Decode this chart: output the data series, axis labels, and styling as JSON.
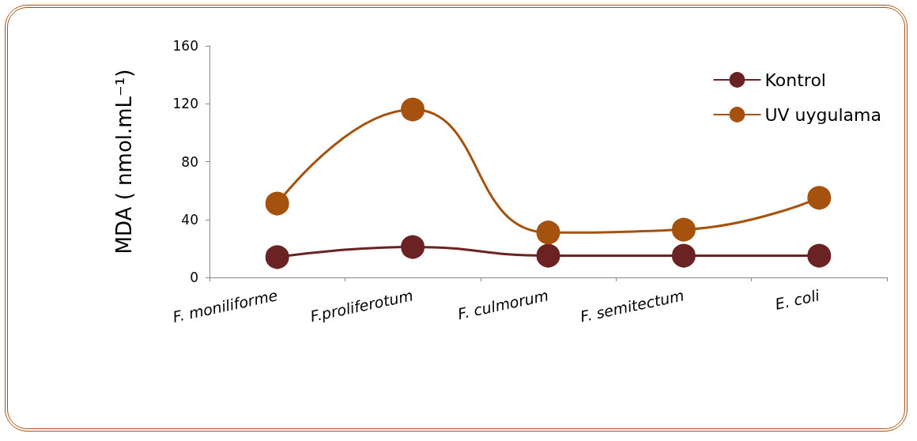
{
  "chart_data": {
    "type": "line",
    "ylabel": "MDA ( nmol.mL⁻¹)",
    "categories": [
      "F. moniliforme",
      "F.proliferotum",
      "F. culmorum",
      "F. semitectum",
      "E. coli"
    ],
    "series": [
      {
        "name": "Kontrol",
        "color": "#6b2222",
        "values": [
          14,
          21,
          15,
          15,
          15
        ]
      },
      {
        "name": "UV uygulama",
        "color": "#a5520f",
        "values": [
          51,
          116,
          31,
          33,
          55
        ]
      }
    ],
    "ylim": [
      0,
      160
    ],
    "yticks": [
      0,
      40,
      80,
      120,
      160
    ],
    "grid": false,
    "legend": "top right",
    "marker": "circle",
    "line_style": "solid"
  }
}
